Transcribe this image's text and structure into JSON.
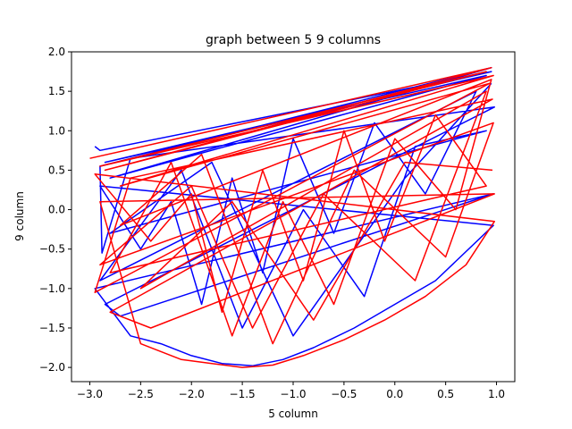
{
  "chart_data": {
    "type": "line",
    "title": "graph between 5 9 columns",
    "xlabel": "5 column",
    "ylabel": "9 column",
    "xlim": [
      -3.18,
      1.18
    ],
    "ylim": [
      -2.18,
      2.0
    ],
    "xticks": [
      -3.0,
      -2.5,
      -2.0,
      -1.5,
      -1.0,
      -0.5,
      0.0,
      0.5,
      1.0
    ],
    "xtick_labels": [
      "−3.0",
      "−2.5",
      "−2.0",
      "−1.5",
      "−1.0",
      "−0.5",
      "0.0",
      "0.5",
      "1.0"
    ],
    "yticks": [
      -2.0,
      -1.5,
      -1.0,
      -0.5,
      0.0,
      0.5,
      1.0,
      1.5,
      2.0
    ],
    "ytick_labels": [
      "−2.0",
      "−1.5",
      "−1.0",
      "−0.5",
      "0.0",
      "0.5",
      "1.0",
      "1.5",
      "2.0"
    ],
    "grid": false,
    "legend": "none",
    "series": [
      {
        "color": "#0000ff",
        "x": [
          -2.95,
          -2.9,
          0.95,
          -2.85,
          0.9,
          -2.8,
          0.95,
          -2.9,
          -2.88,
          -2.6,
          0.98,
          -2.85,
          -2.7,
          0.97,
          -2.95,
          -2.6,
          -2.3,
          -2.0,
          -1.7,
          -1.4,
          -1.1,
          -0.8,
          -0.4,
          0.0,
          0.4,
          0.97,
          -2.9,
          -2.5,
          -2.2,
          -1.9,
          -1.6,
          -1.3,
          -1.0,
          -0.6,
          -0.2,
          0.3,
          0.8,
          -2.9,
          -2.1,
          -1.5,
          -0.9,
          -0.3,
          0.2,
          0.9,
          -2.8,
          -1.8,
          -1.0,
          0.1,
          0.95
        ],
        "y": [
          0.8,
          0.75,
          1.75,
          0.6,
          1.7,
          0.4,
          1.8,
          0.55,
          -0.55,
          0.65,
          1.3,
          -1.2,
          -1.35,
          0.2,
          -1.0,
          -1.6,
          -1.7,
          -1.85,
          -1.95,
          -1.98,
          -1.9,
          -1.75,
          -1.5,
          -1.2,
          -0.9,
          -0.2,
          0.3,
          -0.5,
          0.1,
          -1.2,
          0.4,
          -0.8,
          0.9,
          -0.3,
          1.1,
          0.2,
          1.5,
          -0.9,
          0.5,
          -1.5,
          0.0,
          -1.1,
          0.8,
          1.0,
          -0.3,
          0.6,
          -1.6,
          0.4,
          1.6
        ]
      },
      {
        "color": "#ff0000",
        "x": [
          -3.0,
          0.95,
          -2.85,
          0.9,
          -2.9,
          0.97,
          -2.7,
          0.93,
          -2.95,
          -2.6,
          0.96,
          -2.8,
          -2.4,
          0.98,
          -2.9,
          -2.5,
          -2.1,
          -1.8,
          -1.5,
          -1.2,
          -0.9,
          -0.5,
          -0.1,
          0.3,
          0.7,
          0.98,
          -2.95,
          -2.4,
          -2.0,
          -1.7,
          -1.3,
          -0.9,
          -0.5,
          -0.1,
          0.4,
          0.9,
          -2.8,
          -2.2,
          -1.6,
          -1.1,
          -0.6,
          0.0,
          0.6,
          0.95,
          -2.7,
          -1.9,
          -1.2,
          -0.4,
          0.5,
          0.97,
          -2.9,
          -2.0,
          -1.4,
          -0.7,
          0.2,
          0.9,
          -2.5,
          -1.6,
          -0.8,
          0.1,
          0.96
        ],
        "y": [
          0.65,
          1.8,
          0.5,
          1.75,
          0.55,
          1.7,
          0.3,
          1.6,
          -1.05,
          0.4,
          1.4,
          -1.3,
          -1.5,
          0.2,
          0.1,
          -1.7,
          -1.9,
          -1.95,
          -2.0,
          -1.97,
          -1.85,
          -1.65,
          -1.4,
          -1.1,
          -0.7,
          -0.15,
          0.45,
          -0.4,
          0.2,
          -1.3,
          0.5,
          -0.9,
          1.0,
          -0.4,
          1.2,
          0.3,
          -0.8,
          0.6,
          -1.6,
          0.1,
          -1.2,
          0.9,
          0.0,
          1.65,
          -0.2,
          0.7,
          -1.7,
          0.5,
          -0.6,
          1.1,
          -0.7,
          0.3,
          -1.5,
          0.2,
          -0.9,
          1.5,
          -1.0,
          0.1,
          -1.4,
          0.6,
          0.5
        ]
      }
    ]
  }
}
